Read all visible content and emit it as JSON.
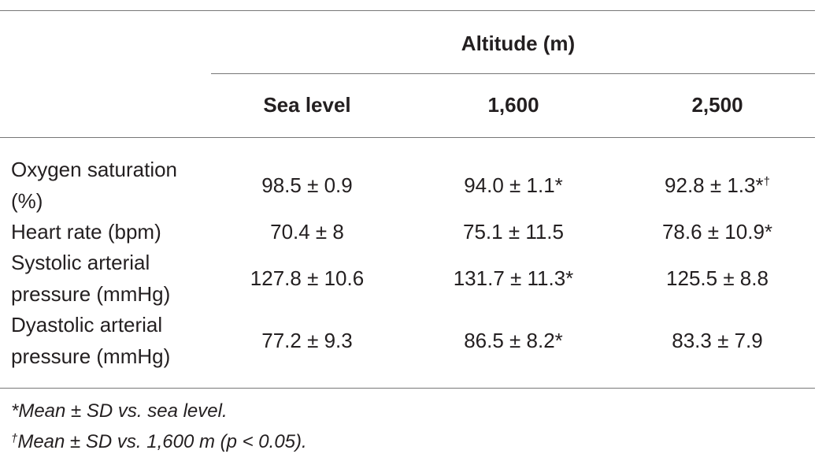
{
  "table": {
    "group_header": "Altitude (m)",
    "columns": [
      "Sea level",
      "1,600",
      "2,500"
    ],
    "rows": [
      {
        "label": [
          "Oxygen saturation",
          "(%)"
        ],
        "cells": [
          {
            "text": "98.5 ± 0.9"
          },
          {
            "text": "94.0 ± 1.1*"
          },
          {
            "text": "92.8 ± 1.3*",
            "sup": "†"
          }
        ]
      },
      {
        "label": [
          "Heart rate (bpm)"
        ],
        "cells": [
          {
            "text": "70.4 ± 8"
          },
          {
            "text": "75.1 ± 11.5"
          },
          {
            "text": "78.6 ± 10.9*"
          }
        ]
      },
      {
        "label": [
          "Systolic arterial",
          "pressure (mmHg)"
        ],
        "cells": [
          {
            "text": "127.8 ± 10.6"
          },
          {
            "text": "131.7 ± 11.3*"
          },
          {
            "text": "125.5 ± 8.8"
          }
        ]
      },
      {
        "label": [
          "Dyastolic arterial",
          "pressure (mmHg)"
        ],
        "cells": [
          {
            "text": "77.2 ± 9.3"
          },
          {
            "text": "86.5 ± 8.2*"
          },
          {
            "text": "83.3 ± 7.9"
          }
        ]
      }
    ],
    "footnotes": [
      {
        "mark": "*",
        "text": "Mean ± SD vs. sea level."
      },
      {
        "mark": "†",
        "text": "Mean ± SD vs. 1,600 m (p < 0.05)."
      }
    ]
  }
}
